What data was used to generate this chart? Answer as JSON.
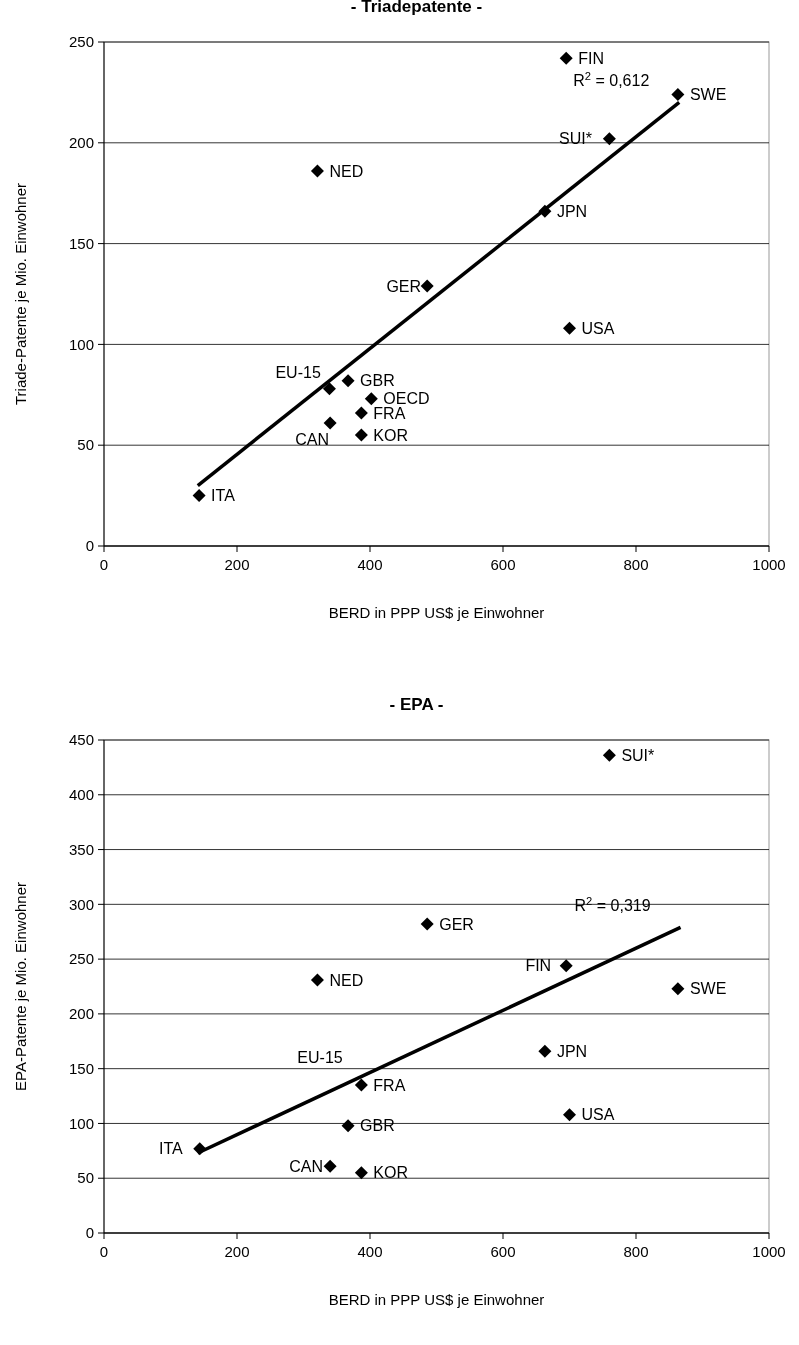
{
  "chart_data": [
    {
      "type": "scatter",
      "title": "- Triadepatente -",
      "xlabel": "BERD  in  PPP US$ je Einwohner",
      "ylabel": "Triade-Patente je Mio. Einwohner",
      "xlim": [
        0,
        1000
      ],
      "xticks": [
        0,
        200,
        400,
        600,
        800,
        1000
      ],
      "ylim": [
        0,
        250
      ],
      "yticks": [
        0,
        50,
        100,
        150,
        200,
        250
      ],
      "grid": "y",
      "marker": "diamond",
      "series": [
        {
          "color": "#000000",
          "x": [
            695,
            863,
            760,
            321,
            663,
            486,
            700,
            367,
            339,
            402,
            387,
            340,
            387,
            143
          ],
          "values": [
            242,
            224,
            202,
            186,
            166,
            129,
            108,
            82,
            78,
            73,
            66,
            61,
            55,
            25
          ]
        },
        {
          "type": "line",
          "color": "#000000",
          "marker": "none",
          "x": [
            141,
            865
          ],
          "values": [
            30,
            220
          ]
        }
      ],
      "annotations": [
        {
          "text": "FIN",
          "x": 695,
          "y": 242
        },
        {
          "text": "R$^{2}$ = 0,612",
          "x": 865,
          "y": 220
        },
        {
          "text": "SWE",
          "x": 863,
          "y": 224
        },
        {
          "text": "SUI*",
          "x": 760,
          "y": 202
        },
        {
          "text": "NED",
          "x": 321,
          "y": 186
        },
        {
          "text": "JPN",
          "x": 663,
          "y": 166
        },
        {
          "text": "GER",
          "x": 486,
          "y": 129
        },
        {
          "text": "USA",
          "x": 700,
          "y": 108
        },
        {
          "text": "GBR",
          "x": 367,
          "y": 82
        },
        {
          "text": "EU-15",
          "x": 339,
          "y": 78
        },
        {
          "text": "OECD",
          "x": 402,
          "y": 73
        },
        {
          "text": "FRA",
          "x": 387,
          "y": 66
        },
        {
          "text": "CAN",
          "x": 340,
          "y": 61
        },
        {
          "text": "KOR",
          "x": 387,
          "y": 55
        },
        {
          "text": "ITA",
          "x": 143,
          "y": 25
        }
      ]
    },
    {
      "type": "scatter",
      "title": "- EPA -",
      "xlabel": "BERD  in  PPP US$ je Einwohner",
      "ylabel": "EPA-Patente je Mio. Einwohner",
      "xlim": [
        0,
        1000
      ],
      "xticks": [
        0,
        200,
        400,
        600,
        800,
        1000
      ],
      "ylim": [
        0,
        450
      ],
      "yticks": [
        0,
        50,
        100,
        150,
        200,
        250,
        300,
        350,
        400,
        450
      ],
      "grid": "y",
      "marker": "diamond",
      "series": [
        {
          "color": "#000000",
          "x": [
            760,
            486,
            695,
            321,
            863,
            663,
            387,
            700,
            367,
            144,
            340,
            387
          ],
          "values": [
            436,
            282,
            244,
            231,
            223,
            166,
            135,
            108,
            98,
            77,
            61,
            55
          ]
        },
        {
          "type": "line",
          "color": "#000000",
          "marker": "none",
          "x": [
            141,
            867
          ],
          "values": [
            73,
            279
          ]
        }
      ],
      "annotations": [
        {
          "text": "SUI*",
          "x": 760,
          "y": 436
        },
        {
          "text": "GER",
          "x": 486,
          "y": 282
        },
        {
          "text": "R$^{2}$ = 0,319",
          "x": 867,
          "y": 279
        },
        {
          "text": "FIN",
          "x": 695,
          "y": 244
        },
        {
          "text": "NED",
          "x": 321,
          "y": 231
        },
        {
          "text": "SWE",
          "x": 863,
          "y": 223
        },
        {
          "text": "JPN",
          "x": 663,
          "y": 166
        },
        {
          "text": "EU-15",
          "x": 378,
          "y": 140
        },
        {
          "text": "FRA",
          "x": 387,
          "y": 135
        },
        {
          "text": "GBR",
          "x": 367,
          "y": 98
        },
        {
          "text": "USA",
          "x": 700,
          "y": 108
        },
        {
          "text": "ITA",
          "x": 144,
          "y": 77
        },
        {
          "text": "CAN",
          "x": 340,
          "y": 61
        },
        {
          "text": "KOR",
          "x": 387,
          "y": 55
        }
      ]
    }
  ]
}
